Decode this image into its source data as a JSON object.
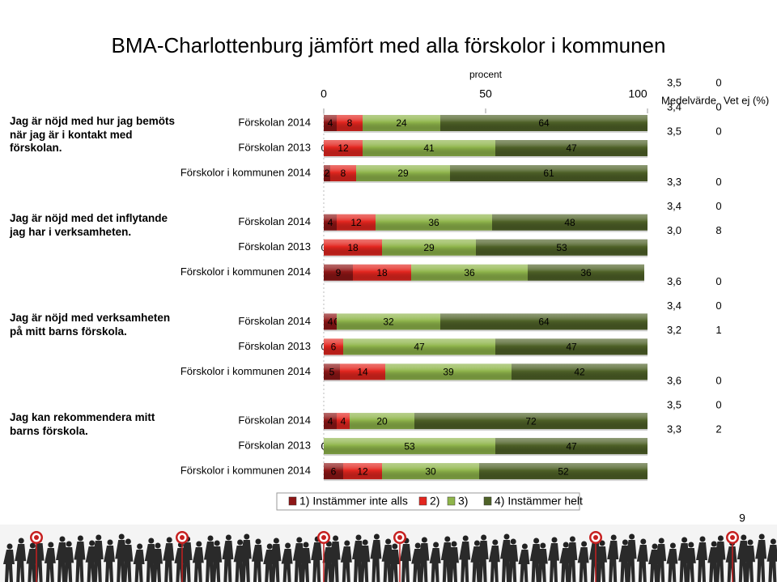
{
  "chart_data": {
    "type": "bar",
    "orientation": "horizontal",
    "stacked": true,
    "title": "BMA-Charlottenburg jämfört med alla förskolor i kommunen",
    "axis_label": "procent",
    "xlim": [
      0,
      100
    ],
    "xticks": [
      0,
      50,
      100
    ],
    "questions": [
      "Jag är nöjd med hur jag bemöts när jag är i kontakt med förskolan.",
      "Jag är nöjd med det inflytande jag har i verksamheten.",
      "Jag är nöjd med verksamheten på mitt barns förskola.",
      "Jag kan rekommendera mitt barns förskola."
    ],
    "categories": [
      "Förskolan 2014",
      "Förskolan 2013",
      "Förskolor i kommunen 2014",
      "Förskolan 2014",
      "Förskolan 2013",
      "Förskolor i kommunen 2014",
      "Förskolan 2014",
      "Förskolan 2013",
      "Förskolor i kommunen 2014",
      "Förskolan 2014",
      "Förskolan 2013",
      "Förskolor i kommunen 2014"
    ],
    "series": [
      {
        "name": "1) Instämmer inte alls",
        "color": "#8e1616",
        "values": [
          4,
          0,
          2,
          4,
          0,
          9,
          4,
          0,
          5,
          4,
          0,
          6
        ]
      },
      {
        "name": "2)",
        "color": "#e3261f",
        "values": [
          8,
          12,
          8,
          12,
          18,
          18,
          0,
          6,
          14,
          4,
          0,
          12
        ]
      },
      {
        "name": "3)",
        "color": "#8fb54b",
        "values": [
          24,
          41,
          29,
          36,
          29,
          36,
          32,
          47,
          39,
          20,
          53,
          30
        ]
      },
      {
        "name": "4) Instämmer helt",
        "color": "#4f6228",
        "values": [
          64,
          47,
          61,
          48,
          53,
          36,
          64,
          47,
          42,
          72,
          47,
          52
        ]
      }
    ],
    "mean_header": "Medelvärde",
    "mean": [
      3.5,
      3.4,
      3.5,
      3.3,
      3.4,
      3.0,
      3.6,
      3.4,
      3.2,
      3.6,
      3.5,
      3.3
    ],
    "mean_labels": [
      "3,5",
      "3,4",
      "3,5",
      "3,3",
      "3,4",
      "3,0",
      "3,6",
      "3,4",
      "3,2",
      "3,6",
      "3,5",
      "3,3"
    ],
    "unknown_header": "Vet ej (%)",
    "unknown": [
      0,
      0,
      0,
      0,
      0,
      8,
      0,
      0,
      1,
      0,
      0,
      2
    ],
    "page_number": 9
  }
}
